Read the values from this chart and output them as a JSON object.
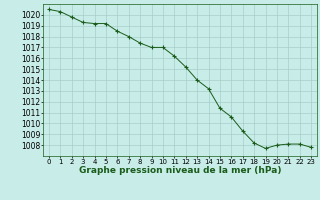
{
  "x": [
    0,
    1,
    2,
    3,
    4,
    5,
    6,
    7,
    8,
    9,
    10,
    11,
    12,
    13,
    14,
    15,
    16,
    17,
    18,
    19,
    20,
    21,
    22,
    23
  ],
  "y": [
    1020.5,
    1020.3,
    1019.8,
    1019.3,
    1019.2,
    1019.2,
    1018.5,
    1018.0,
    1017.4,
    1017.0,
    1017.0,
    1016.2,
    1015.2,
    1014.0,
    1013.2,
    1011.4,
    1010.6,
    1009.3,
    1008.2,
    1007.7,
    1008.0,
    1008.1,
    1008.1,
    1007.8
  ],
  "line_color": "#1a5c1a",
  "marker": "+",
  "bg_color": "#c8ece8",
  "grid_color": "#a0c8c4",
  "xlabel": "Graphe pression niveau de la mer (hPa)",
  "xlabel_fontsize": 6.5,
  "ylabel_fontsize": 5.5,
  "tick_fontsize": 5.0,
  "ylim": [
    1007,
    1021
  ],
  "yticks": [
    1008,
    1009,
    1010,
    1011,
    1012,
    1013,
    1014,
    1015,
    1016,
    1017,
    1018,
    1019,
    1020
  ],
  "xlim": [
    -0.5,
    23.5
  ],
  "xticks": [
    0,
    1,
    2,
    3,
    4,
    5,
    6,
    7,
    8,
    9,
    10,
    11,
    12,
    13,
    14,
    15,
    16,
    17,
    18,
    19,
    20,
    21,
    22,
    23
  ]
}
